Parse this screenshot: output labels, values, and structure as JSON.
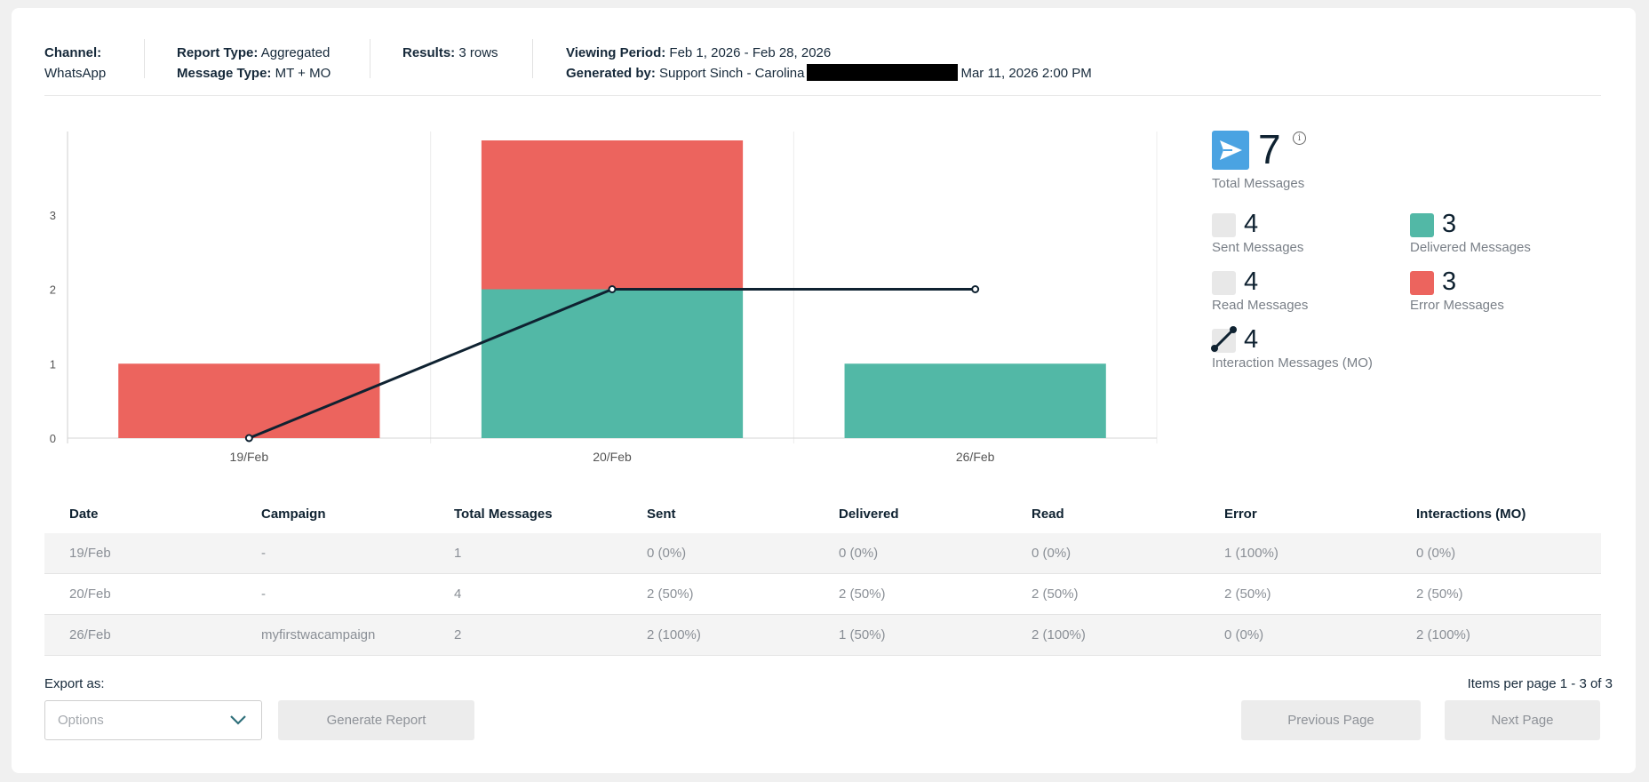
{
  "header": {
    "channel_label": "Channel:",
    "channel_value": "WhatsApp",
    "report_type_label": "Report Type:",
    "report_type_value": "Aggregated",
    "message_type_label": "Message Type:",
    "message_type_value": "MT + MO",
    "results_label": "Results:",
    "results_value": "3 rows",
    "viewing_period_label": "Viewing Period:",
    "viewing_period_value": "Feb 1, 2026 - Feb 28, 2026",
    "generated_by_label": "Generated by:",
    "generated_by_value": "Support Sinch - Carolina",
    "generated_at": "Mar 11, 2026 2:00 PM"
  },
  "chart_data": {
    "type": "bar",
    "stacked": true,
    "categories": [
      "19/Feb",
      "20/Feb",
      "26/Feb"
    ],
    "series": [
      {
        "values": [
          0,
          2,
          1
        ],
        "color": "#52b8a6"
      },
      {
        "values": [
          1,
          2,
          0
        ],
        "color": "#ec645e"
      }
    ],
    "line": {
      "values": [
        0,
        2,
        2
      ],
      "color": "#0f2231"
    },
    "yticks": [
      0,
      1,
      2,
      3
    ],
    "ylim": [
      0,
      4
    ],
    "grid": "vertical",
    "legend": "none"
  },
  "stats": {
    "total": {
      "value": "7",
      "label": "Total Messages",
      "icon": "send-icon",
      "color": "#4aa3e2"
    },
    "sent": {
      "value": "4",
      "label": "Sent Messages",
      "color": "#e8e8e8"
    },
    "delivered": {
      "value": "3",
      "label": "Delivered Messages",
      "color": "#52b8a6"
    },
    "read": {
      "value": "4",
      "label": "Read Messages",
      "color": "#e8e8e8"
    },
    "error": {
      "value": "3",
      "label": "Error Messages",
      "color": "#ec645e"
    },
    "interaction": {
      "value": "4",
      "label": "Interaction Messages (MO)",
      "icon": "line-legend-icon"
    }
  },
  "table": {
    "columns": [
      "Date",
      "Campaign",
      "Total Messages",
      "Sent",
      "Delivered",
      "Read",
      "Error",
      "Interactions (MO)"
    ],
    "rows": [
      [
        "19/Feb",
        "-",
        "1",
        "0 (0%)",
        "0 (0%)",
        "0 (0%)",
        "1 (100%)",
        "0 (0%)"
      ],
      [
        "20/Feb",
        "-",
        "4",
        "2 (50%)",
        "2 (50%)",
        "2 (50%)",
        "2 (50%)",
        "2 (50%)"
      ],
      [
        "26/Feb",
        "myfirstwacampaign",
        "2",
        "2 (100%)",
        "1 (50%)",
        "2 (100%)",
        "0 (0%)",
        "2 (100%)"
      ]
    ]
  },
  "footer": {
    "export_label": "Export as:",
    "options_placeholder": "Options",
    "generate_button": "Generate Report",
    "pagination_info": "Items per page 1 - 3 of 3",
    "prev_button": "Previous Page",
    "next_button": "Next Page"
  }
}
